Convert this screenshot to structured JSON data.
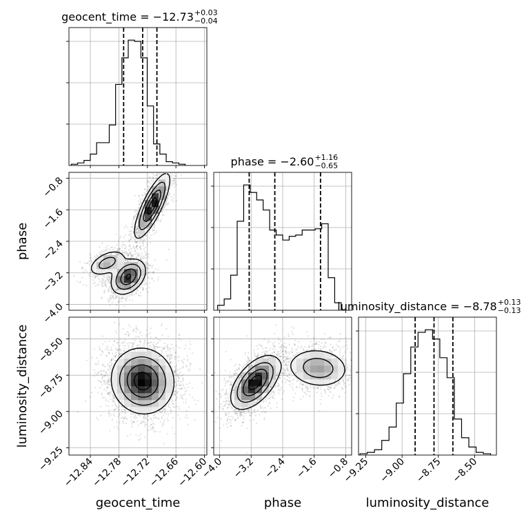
{
  "chart_data": {
    "type": "corner",
    "parameters": [
      "geocent_time",
      "phase",
      "luminosity_distance"
    ],
    "axis_labels": {
      "geocent_time": "geocent_time",
      "phase": "phase",
      "luminosity_distance": "luminosity_distance"
    },
    "ranges": {
      "geocent_time": [
        -12.885,
        -12.595
      ],
      "phase": [
        -4.15,
        -0.65
      ],
      "luminosity_distance": [
        -9.3,
        -8.35
      ]
    },
    "ticks": {
      "geocent_time": {
        "values": [
          -12.84,
          -12.78,
          -12.72,
          -12.66,
          -12.6
        ],
        "labels": [
          "−12.84",
          "−12.78",
          "−12.72",
          "−12.66",
          "−12.60"
        ]
      },
      "phase": {
        "values": [
          -4.0,
          -3.2,
          -2.4,
          -1.6,
          -0.8
        ],
        "labels": [
          "−4.0",
          "−3.2",
          "−2.4",
          "−1.6",
          "−0.8"
        ]
      },
      "luminosity_distance": {
        "values": [
          -9.25,
          -9.0,
          -8.75,
          -8.5
        ],
        "labels": [
          "−9.25",
          "−9.00",
          "−8.75",
          "−8.50"
        ]
      }
    },
    "titles": {
      "geocent_time": {
        "text": "geocent_time = −12.73",
        "plus": "+0.03",
        "minus": "−0.04"
      },
      "phase": {
        "text": "phase = −2.60",
        "plus": "+1.16",
        "minus": "−0.65"
      },
      "luminosity_distance": {
        "text": "luminosity_distance = −8.78",
        "plus": "+0.13",
        "minus": "−0.13"
      }
    },
    "quantiles": {
      "geocent_time": [
        -12.77,
        -12.73,
        -12.7
      ],
      "phase": [
        -3.25,
        -2.6,
        -1.44
      ],
      "luminosity_distance": [
        -8.91,
        -8.78,
        -8.65
      ]
    },
    "histograms": {
      "geocent_time": {
        "edges_start": -12.88,
        "bin_width": 0.0133,
        "counts": [
          1,
          2,
          4,
          9,
          18,
          18,
          32,
          64,
          85,
          99,
          98,
          85,
          47,
          17,
          9,
          3,
          2,
          1
        ]
      },
      "phase": {
        "edges_start": -4.05,
        "bin_width": 0.165,
        "counts": [
          4,
          9,
          28,
          71,
          100,
          94,
          88,
          80,
          64,
          60,
          56,
          59,
          60,
          64,
          64,
          65,
          69,
          26,
          6
        ]
      },
      "luminosity_distance": {
        "edges_start": -9.29,
        "bin_width": 0.05,
        "counts": [
          1,
          2,
          4,
          11,
          21,
          39,
          61,
          81,
          92,
          94,
          87,
          73,
          58,
          27,
          13,
          6,
          2,
          1
        ]
      }
    },
    "density_2d": [
      {
        "x": "geocent_time",
        "y": "phase",
        "modes": [
          {
            "x": -12.71,
            "y": -1.5,
            "sx": 0.018,
            "sy": 0.4,
            "rho": 0.8,
            "w": 0.48
          },
          {
            "x": -12.76,
            "y": -3.3,
            "sx": 0.018,
            "sy": 0.22,
            "rho": 0.35,
            "w": 0.37
          },
          {
            "x": -12.805,
            "y": -2.95,
            "sx": 0.02,
            "sy": 0.17,
            "rho": 0.5,
            "w": 0.15
          }
        ]
      },
      {
        "x": "geocent_time",
        "y": "luminosity_distance",
        "modes": [
          {
            "x": -12.73,
            "y": -8.79,
            "sx": 0.032,
            "sy": 0.11,
            "rho": -0.05,
            "w": 1.0
          }
        ]
      },
      {
        "x": "phase",
        "y": "luminosity_distance",
        "modes": [
          {
            "x": -3.1,
            "y": -8.8,
            "sx": 0.3,
            "sy": 0.09,
            "rho": 0.55,
            "w": 0.62
          },
          {
            "x": -1.5,
            "y": -8.7,
            "sx": 0.4,
            "sy": 0.07,
            "rho": -0.1,
            "w": 0.38
          }
        ]
      }
    ],
    "grid": true,
    "points_color": "#000000",
    "line_color": "#000000"
  }
}
